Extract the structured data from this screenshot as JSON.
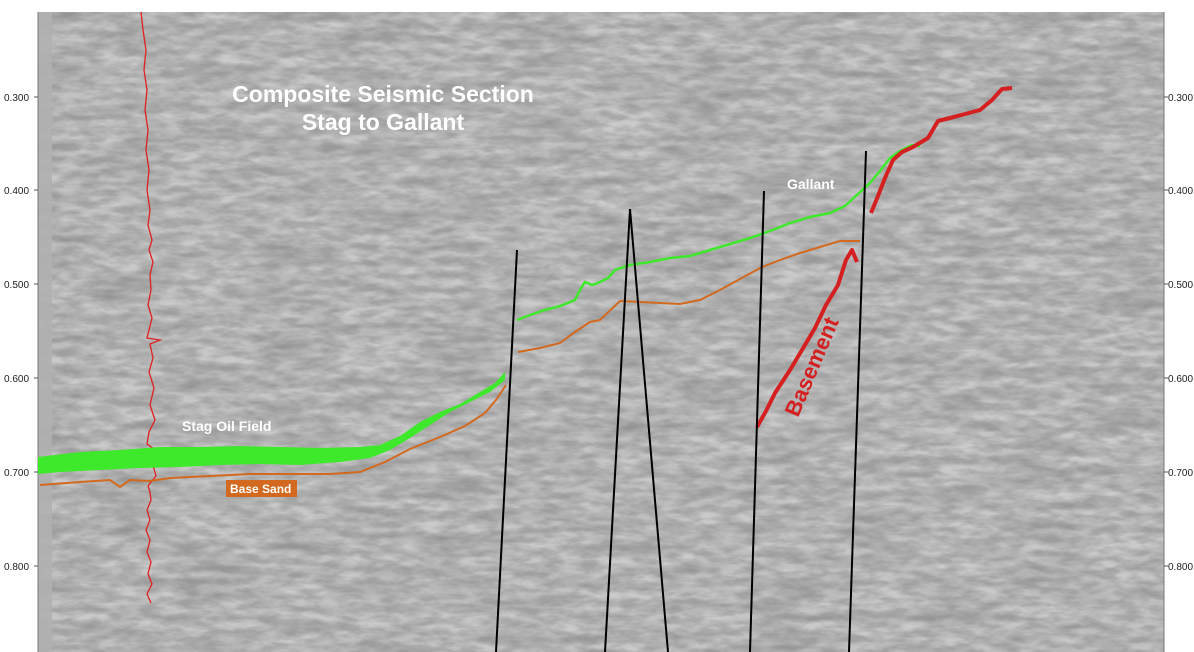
{
  "title": {
    "line1": "Composite Seismic Section",
    "line2": "Stag to Gallant"
  },
  "axis": {
    "ticks": [
      "0.300",
      "0.400",
      "0.500",
      "0.600",
      "0.700",
      "0.800"
    ]
  },
  "labels": {
    "stag": "Stag Oil Field",
    "gallant": "Gallant",
    "base_sand": "Base Sand",
    "basement": "Basement"
  },
  "colors": {
    "reservoir_green": "#3ee82a",
    "base_sand_orange": "#d2691e",
    "basement_red": "#d42020",
    "well_log_red": "#e02020",
    "fault_black": "#000000",
    "panel_gray": "#a8a8a8"
  }
}
